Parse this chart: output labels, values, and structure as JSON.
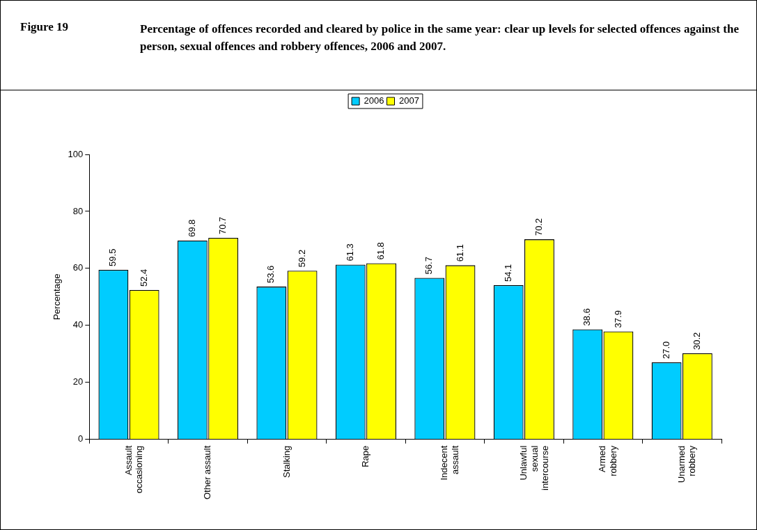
{
  "chart_data": {
    "type": "bar",
    "title": "Figure 19",
    "subtitle": "Percentage of offences recorded and cleared by police in the same year:  clear up levels for selected offences against the person, sexual offences and robbery offences, 2006 and 2007.",
    "ylabel": "Percentage",
    "categories": [
      "Assault occasioning",
      "Other assault",
      "Stalking",
      "Rape",
      "Indecent assault",
      "Unlawful sexual intercourse",
      "Armed robbery",
      "Unarmed robbery"
    ],
    "series": [
      {
        "name": "2006",
        "color": "#00ccff",
        "values": [
          59.5,
          69.8,
          53.6,
          61.3,
          56.7,
          54.1,
          38.6,
          27.0
        ]
      },
      {
        "name": "2007",
        "color": "#ffff00",
        "values": [
          52.4,
          70.7,
          59.2,
          61.8,
          61.1,
          70.2,
          37.9,
          30.2
        ]
      }
    ],
    "value_labels": [
      [
        "59.5",
        "69.8",
        "53.6",
        "61.3",
        "56.7",
        "54.1",
        "38.6",
        "27.0"
      ],
      [
        "52.4",
        "70.7",
        "59.2",
        "61.8",
        "61.1",
        "70.2",
        "37.9",
        "30.2"
      ]
    ],
    "ylim": [
      0,
      100
    ],
    "yticks": [
      0,
      20,
      40,
      60,
      80,
      100
    ],
    "legend": "top"
  }
}
